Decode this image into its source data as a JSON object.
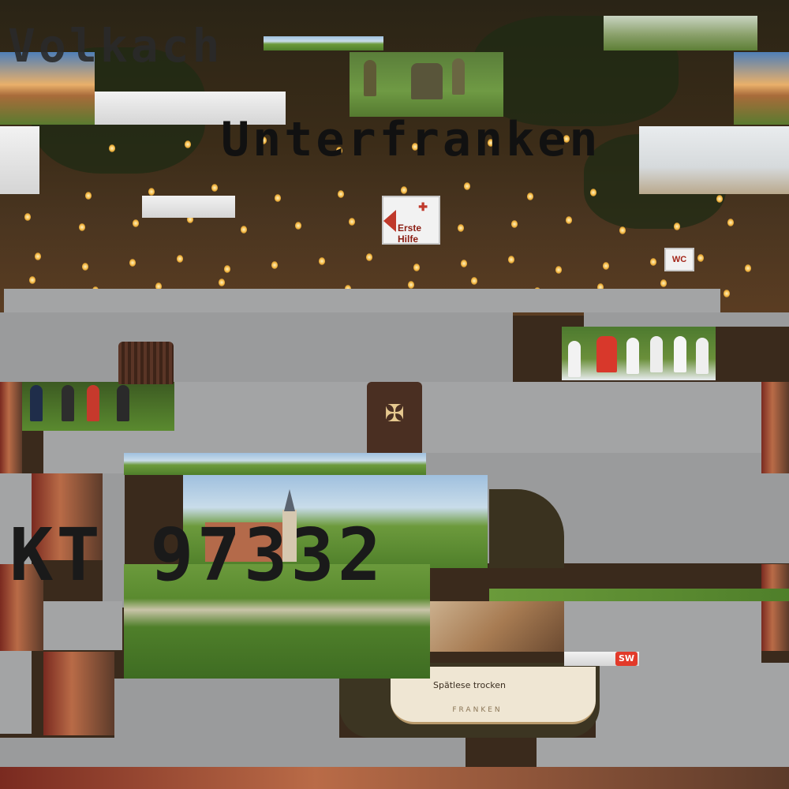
{
  "texts": {
    "place_name": "Volkach",
    "region_name": "Unterfranken",
    "plate_code": "KT 97332",
    "sign_first_aid": "Erste Hilfe",
    "sign_wc": "WC",
    "wine_label": "Spätlese trocken",
    "wine_region": "FRANKEN",
    "sw_logo": "SW"
  },
  "colors": {
    "gray_band": "#a3a4a5",
    "sign_red": "#c0392b",
    "bottle_brown": "#4a2f22"
  },
  "icons": {
    "first_aid_cross": "first-aid-cross-icon",
    "bottle_emblem": "winery-emblem-icon"
  }
}
